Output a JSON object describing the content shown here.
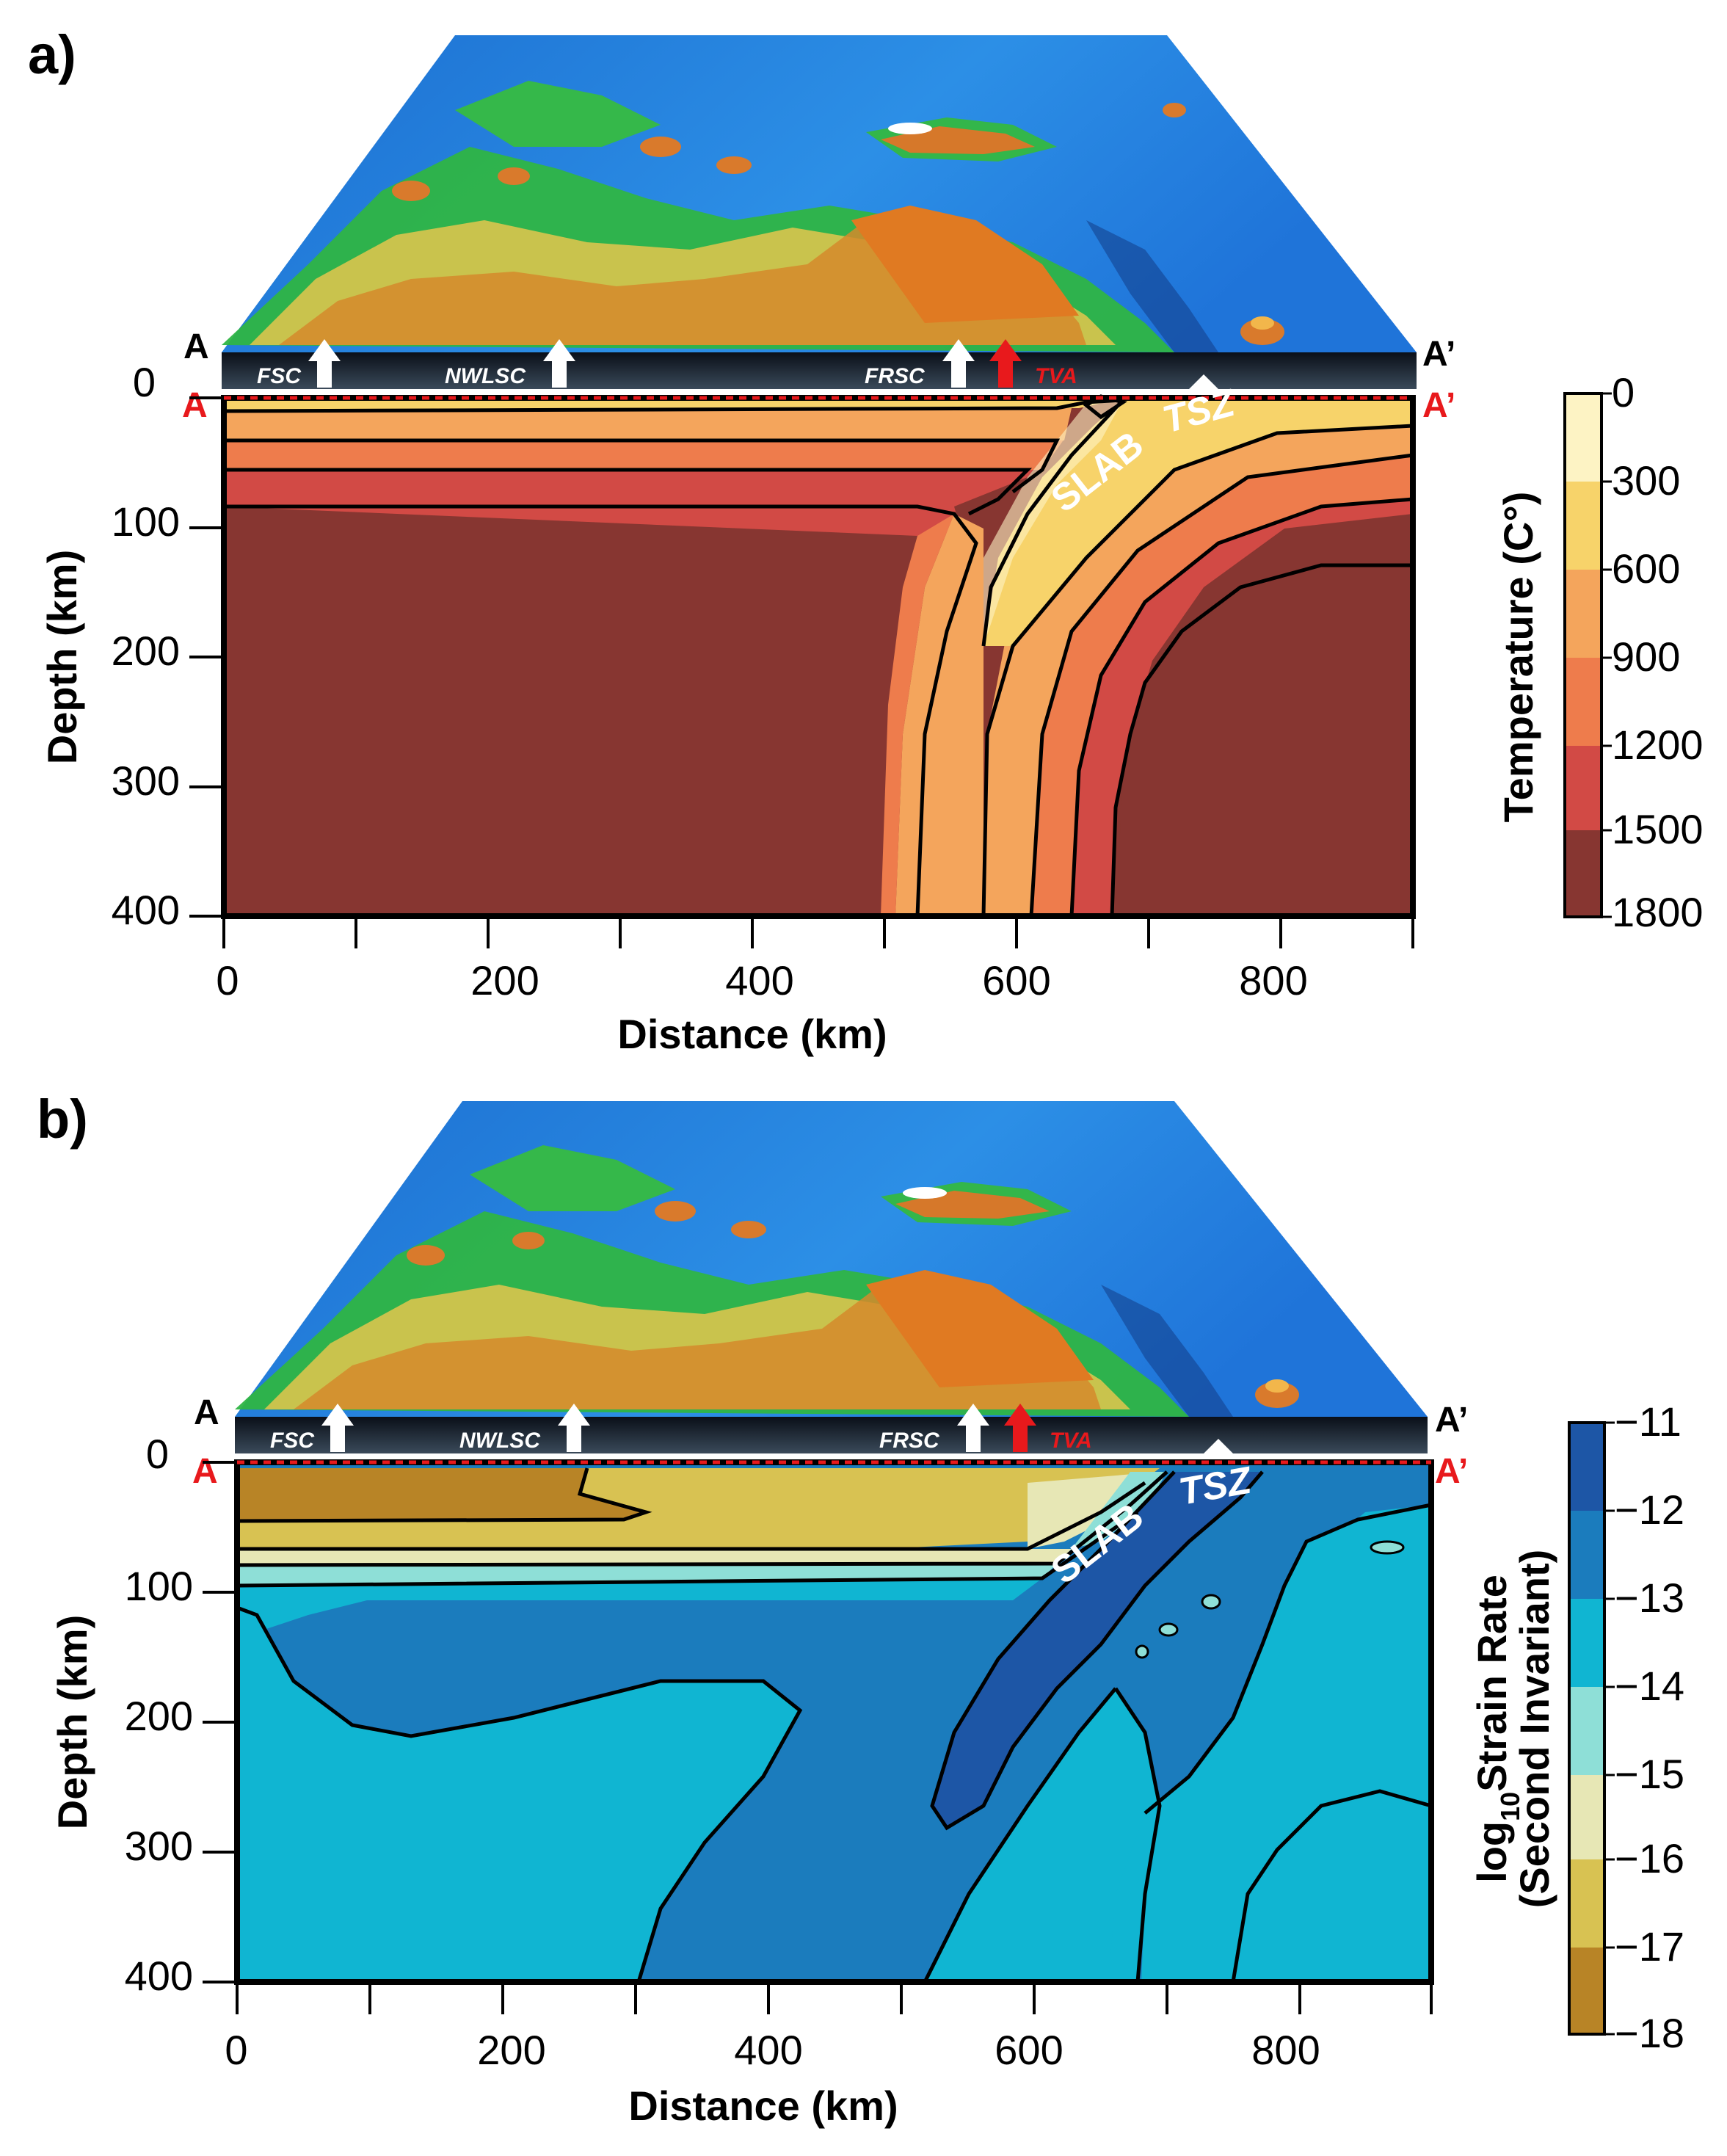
{
  "panel_a": {
    "label": "a)",
    "profile_start": "A",
    "profile_end": "A’",
    "features": {
      "fsc": "FSC",
      "nwlsc": "NWLSC",
      "frsc": "FRSC",
      "tva": "TVA"
    },
    "slab_label": "SLAB",
    "tsz_label": "TSZ",
    "x_axis_label": "Distance (km)",
    "y_axis_label": "Depth (km)",
    "x_ticks": [
      "0",
      "200",
      "400",
      "600",
      "800"
    ],
    "y_ticks": [
      "0",
      "100",
      "200",
      "300",
      "400"
    ],
    "colorbar_title": "Temperature (C°)",
    "colorbar_ticks": [
      "0",
      "300",
      "600",
      "900",
      "1200",
      "1500",
      "1800"
    ],
    "colorbar_colors": [
      "#fdf3c4",
      "#f7d36a",
      "#f4a55c",
      "#ee7c4c",
      "#d24a45",
      "#873631"
    ]
  },
  "panel_b": {
    "label": "b)",
    "profile_start": "A",
    "profile_end": "A’",
    "features": {
      "fsc": "FSC",
      "nwlsc": "NWLSC",
      "frsc": "FRSC",
      "tva": "TVA"
    },
    "slab_label": "SLAB",
    "tsz_label": "TSZ",
    "x_axis_label": "Distance (km)",
    "y_axis_label": "Depth (km)",
    "x_ticks": [
      "0",
      "200",
      "400",
      "600",
      "800"
    ],
    "y_ticks": [
      "0",
      "100",
      "200",
      "300",
      "400"
    ],
    "colorbar_title_main": "log",
    "colorbar_title_sub": "10",
    "colorbar_title_rest": "Strain Rate",
    "colorbar_title_line2": "(Second Invariant)",
    "colorbar_ticks": [
      "−11",
      "−12",
      "−13",
      "−14",
      "−15",
      "−16",
      "−17",
      "−18"
    ],
    "colorbar_colors": [
      "#1d56a6",
      "#1b7cbd",
      "#10b5d2",
      "#8edfd7",
      "#e7e7b5",
      "#d8c252",
      "#b88426"
    ]
  }
}
